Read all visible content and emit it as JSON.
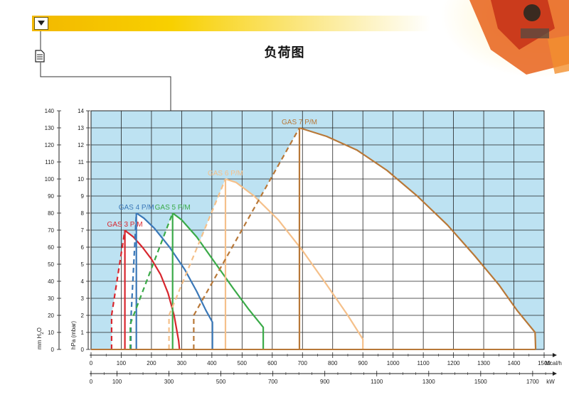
{
  "header": {
    "title": "负荷图",
    "menu_icon": "triangle-down-icon",
    "doc_icon": "document-icon"
  },
  "colors": {
    "plot_fill": "#bde2f2",
    "envelope_fill": "#ffffff",
    "header_gold": "#f2b800",
    "gas3": "#d8262e",
    "gas4": "#3a78b8",
    "gas5": "#3aaa48",
    "gas6": "#f5c08a",
    "gas7": "#b87838"
  },
  "chart_data": {
    "type": "line",
    "title": "负荷图",
    "grid": true,
    "left_axis": {
      "label": "mm H2O",
      "label_main": "mm H",
      "label_sub": "2",
      "label_tail": "O",
      "range": [
        0,
        140
      ],
      "ticks": [
        "0",
        "10",
        "20",
        "30",
        "40",
        "50",
        "60",
        "70",
        "80",
        "90",
        "100",
        "110",
        "120",
        "130",
        "140"
      ]
    },
    "right_axis": {
      "label": "hPa (mbar)",
      "range": [
        0,
        14
      ],
      "ticks": [
        "0",
        "1",
        "2",
        "3",
        "4",
        "5",
        "6",
        "7",
        "8",
        "9",
        "10",
        "11",
        "12",
        "13",
        "14"
      ]
    },
    "x_axis_mcal": {
      "unit": "Mcal/h",
      "range": [
        0,
        1500
      ],
      "ticks": [
        "0",
        "100",
        "200",
        "300",
        "400",
        "500",
        "600",
        "700",
        "800",
        "900",
        "1000",
        "1100",
        "1200",
        "1300",
        "1400",
        "1500"
      ]
    },
    "x_axis_kw": {
      "unit": "kW",
      "ticks": [
        "0",
        "100",
        "300",
        "500",
        "700",
        "900",
        "1100",
        "1300",
        "1500",
        "1700"
      ]
    },
    "series": [
      {
        "name": "GAS 3 P/M",
        "color": "#d8262e",
        "dashed_start": [
          [
            68,
            0
          ],
          [
            68,
            2
          ],
          [
            112,
            7
          ]
        ],
        "envelope": [
          [
            112,
            7
          ],
          [
            118,
            6.9
          ],
          [
            140,
            6.6
          ],
          [
            170,
            6.0
          ],
          [
            200,
            5.3
          ],
          [
            230,
            4.4
          ],
          [
            255,
            3.3
          ],
          [
            275,
            2.0
          ],
          [
            290,
            0.5
          ],
          [
            293,
            0
          ]
        ],
        "vertical": [
          [
            112,
            0
          ],
          [
            112,
            7
          ]
        ]
      },
      {
        "name": "GAS 4 P/M",
        "color": "#3a78b8",
        "dashed_start": [
          [
            132,
            0
          ],
          [
            132,
            1.8
          ],
          [
            150,
            8
          ]
        ],
        "envelope": [
          [
            150,
            8
          ],
          [
            175,
            7.7
          ],
          [
            210,
            7.1
          ],
          [
            260,
            6.0
          ],
          [
            310,
            4.7
          ],
          [
            350,
            3.4
          ],
          [
            380,
            2.3
          ],
          [
            402,
            1.6
          ],
          [
            402,
            0
          ]
        ],
        "vertical": [
          [
            150,
            0
          ],
          [
            150,
            8
          ]
        ]
      },
      {
        "name": "GAS 5 P/M",
        "color": "#3aaa48",
        "dashed_start": [
          [
            130,
            0
          ],
          [
            130,
            1.5
          ],
          [
            270,
            8
          ]
        ],
        "envelope": [
          [
            270,
            8
          ],
          [
            300,
            7.6
          ],
          [
            350,
            6.6
          ],
          [
            410,
            5.1
          ],
          [
            470,
            3.6
          ],
          [
            520,
            2.4
          ],
          [
            570,
            1.3
          ],
          [
            570,
            0
          ]
        ],
        "vertical": [
          [
            270,
            0
          ],
          [
            270,
            8
          ]
        ]
      },
      {
        "name": "GAS 6 P/M",
        "color": "#f5c08a",
        "dashed_start": [
          [
            258,
            0
          ],
          [
            258,
            2.0
          ],
          [
            445,
            10
          ]
        ],
        "envelope": [
          [
            445,
            10
          ],
          [
            480,
            9.8
          ],
          [
            540,
            9.0
          ],
          [
            620,
            7.6
          ],
          [
            700,
            5.8
          ],
          [
            780,
            3.8
          ],
          [
            850,
            2.0
          ],
          [
            900,
            0.6
          ],
          [
            900,
            0
          ]
        ],
        "vertical": [
          [
            445,
            0
          ],
          [
            445,
            10
          ]
        ]
      },
      {
        "name": "GAS 7 P/M",
        "color": "#b87838",
        "dashed_start": [
          [
            340,
            0
          ],
          [
            340,
            2.0
          ],
          [
            690,
            13
          ]
        ],
        "envelope": [
          [
            690,
            13
          ],
          [
            780,
            12.5
          ],
          [
            880,
            11.7
          ],
          [
            980,
            10.5
          ],
          [
            1080,
            9.0
          ],
          [
            1180,
            7.3
          ],
          [
            1270,
            5.5
          ],
          [
            1350,
            3.8
          ],
          [
            1410,
            2.3
          ],
          [
            1470,
            1.0
          ],
          [
            1472,
            0
          ]
        ],
        "vertical": [
          [
            690,
            0
          ],
          [
            690,
            13
          ]
        ]
      }
    ]
  }
}
